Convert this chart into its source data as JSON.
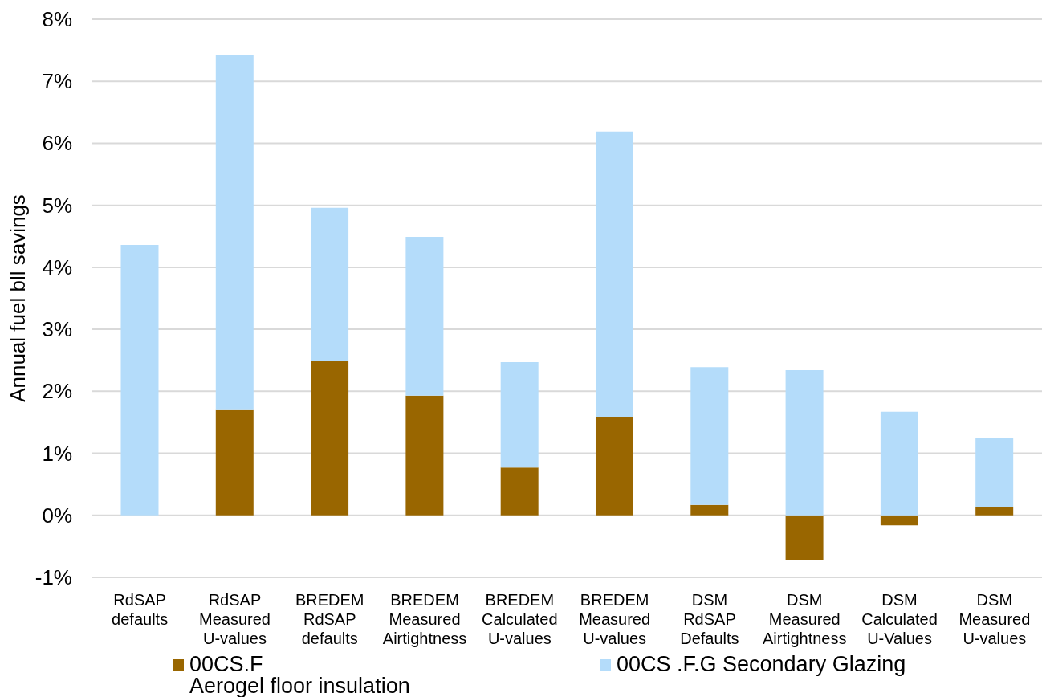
{
  "chart_data": {
    "type": "bar",
    "stacked": true,
    "ylabel": "Annual fuel bll savings",
    "categories": [
      "RdSAP defaults",
      "RdSAP Measured U-values",
      "BREDEM RdSAP defaults",
      "BREDEM Measured Airtightness",
      "BREDEM Calculated U-values",
      "BREDEM Measured U-values",
      "DSM RdSAP Defaults",
      "DSM Measured Airtightness",
      "DSM Calculated U-Values",
      "DSM Measured U-values"
    ],
    "series": [
      {
        "name": "00CS.F\nAerogel floor insulation",
        "color": "#996600",
        "values": [
          null,
          1.71,
          2.49,
          1.93,
          0.77,
          1.59,
          0.17,
          -0.72,
          -0.16,
          0.13
        ]
      },
      {
        "name": "00CS .F.G Secondary Glazing",
        "color": "#b4dcfa",
        "values": [
          4.36,
          5.71,
          2.47,
          2.56,
          1.7,
          4.6,
          2.22,
          2.34,
          1.67,
          1.11
        ]
      }
    ],
    "ylim": [
      -1,
      8
    ],
    "yticks": [
      {
        "value": -1,
        "label": "-1%"
      },
      {
        "value": 0,
        "label": "0%"
      },
      {
        "value": 1,
        "label": "1%"
      },
      {
        "value": 2,
        "label": "2%"
      },
      {
        "value": 3,
        "label": "3%"
      },
      {
        "value": 4,
        "label": "4%"
      },
      {
        "value": 5,
        "label": "5%"
      },
      {
        "value": 6,
        "label": "6%"
      },
      {
        "value": 7,
        "label": "7%"
      },
      {
        "value": 8,
        "label": "8%"
      }
    ],
    "grid": "y",
    "legend": "bottom"
  }
}
